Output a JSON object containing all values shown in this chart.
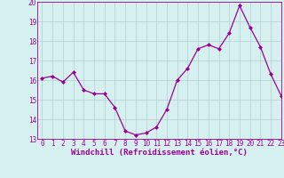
{
  "x": [
    0,
    1,
    2,
    3,
    4,
    5,
    6,
    7,
    8,
    9,
    10,
    11,
    12,
    13,
    14,
    15,
    16,
    17,
    18,
    19,
    20,
    21,
    22,
    23
  ],
  "y": [
    16.1,
    16.2,
    15.9,
    16.4,
    15.5,
    15.3,
    15.3,
    14.6,
    13.4,
    13.2,
    13.3,
    13.6,
    14.5,
    16.0,
    16.6,
    17.6,
    17.8,
    17.6,
    18.4,
    19.8,
    18.7,
    17.7,
    16.3,
    15.2
  ],
  "line_color": "#990099",
  "marker": "D",
  "marker_size": 2,
  "bg_color": "#d6f0f0",
  "grid_color": "#b0d0d0",
  "xlabel": "Windchill (Refroidissement éolien,°C)",
  "ylim": [
    13,
    20
  ],
  "xlim": [
    -0.5,
    23
  ],
  "yticks": [
    13,
    14,
    15,
    16,
    17,
    18,
    19,
    20
  ],
  "xticks": [
    0,
    1,
    2,
    3,
    4,
    5,
    6,
    7,
    8,
    9,
    10,
    11,
    12,
    13,
    14,
    15,
    16,
    17,
    18,
    19,
    20,
    21,
    22,
    23
  ],
  "tick_fontsize": 5.5,
  "xlabel_fontsize": 6.5,
  "line_width": 0.9
}
